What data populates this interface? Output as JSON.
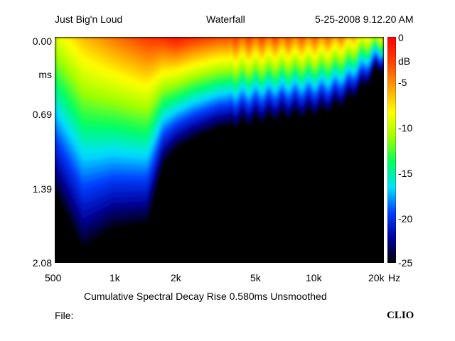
{
  "header": {
    "left": "Just Big'n Loud",
    "center": "Waterfall",
    "right": "5-25-2008 9.12.20 AM"
  },
  "footer": {
    "caption": "Cumulative Spectral Decay   Rise 0.580ms   Unsmoothed",
    "file_label": "File:",
    "brand": "CLIO"
  },
  "chart_data": {
    "type": "heatmap",
    "title": "Waterfall",
    "subtitle": "Cumulative Spectral Decay   Rise 0.580ms   Unsmoothed",
    "x_scale": "log",
    "xlim": [
      500,
      25000
    ],
    "x_ticks": [
      "500",
      "1k",
      "2k",
      "5k",
      "10k",
      "20k"
    ],
    "x_tick_values": [
      500,
      1000,
      2000,
      5000,
      10000,
      20000
    ],
    "x_unit": "Hz",
    "ylim": [
      0.0,
      2.08
    ],
    "y_unit": "ms",
    "y_ticks": [
      "0.00",
      "0.69",
      "1.39",
      "2.08"
    ],
    "y_tick_values": [
      0.0,
      0.69,
      1.39,
      2.08
    ],
    "color_scale": {
      "label": "dB",
      "range": [
        -25,
        0
      ],
      "ticks": [
        "0",
        "-5",
        "-10",
        "-15",
        "-20",
        "-25"
      ],
      "tick_values": [
        0,
        -5,
        -10,
        -15,
        -20,
        -25
      ],
      "colors": [
        "#000000",
        "#0000a0",
        "#0040ff",
        "#00e0ff",
        "#00ff60",
        "#a0ff00",
        "#ffff00",
        "#ffa000",
        "#ff4000",
        "#ff0000"
      ]
    },
    "decay_profile": {
      "frequency_hz": [
        500,
        700,
        1000,
        1500,
        1800,
        2100,
        2600,
        3500,
        5000,
        7000,
        10000,
        13000,
        16000,
        20000,
        23000
      ],
      "initial_level_db": [
        -9,
        -6,
        -4,
        -2,
        -1.5,
        -0.5,
        -1.5,
        -2.5,
        -2.5,
        -3,
        -3.5,
        -4,
        -5,
        -8,
        -9
      ],
      "decay_time_to_minus25db_ms": [
        1.45,
        2.0,
        1.8,
        1.75,
        1.2,
        1.05,
        0.95,
        0.85,
        0.8,
        0.75,
        0.72,
        0.68,
        0.6,
        0.45,
        0.3
      ]
    }
  }
}
